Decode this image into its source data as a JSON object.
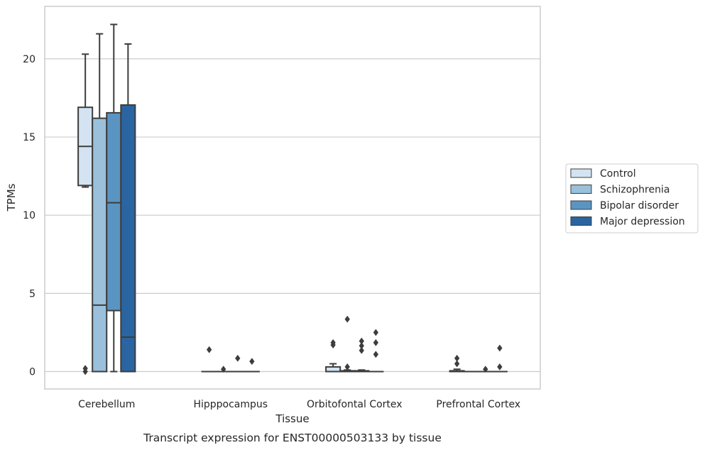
{
  "chart_data": {
    "type": "box",
    "title": "",
    "caption": "Transcript expression for ENST00000503133 by tissue",
    "xlabel": "Tissue",
    "ylabel": "TPMs",
    "ylim": [
      -1.1,
      23.4
    ],
    "yticks": [
      0,
      5,
      10,
      15,
      20
    ],
    "grid": "horizontal",
    "legend_position": "right",
    "categories": [
      "Cerebellum",
      "Hipppocampus",
      "Orbitofontal Cortex",
      "Prefrontal Cortex"
    ],
    "series": [
      {
        "name": "Control",
        "color": "#d3e3f1",
        "boxes": [
          {
            "whislo": 11.8,
            "q1": 11.9,
            "med": 14.4,
            "q3": 16.9,
            "whishi": 20.3,
            "fliers": [
              0.0,
              0.2
            ]
          },
          {
            "whislo": 0.0,
            "q1": 0.0,
            "med": 0.0,
            "q3": 0.0,
            "whishi": 0.0,
            "fliers": [
              1.4
            ]
          },
          {
            "whislo": 0.0,
            "q1": 0.0,
            "med": 0.0,
            "q3": 0.3,
            "whishi": 0.5,
            "fliers": [
              1.7,
              1.85
            ]
          },
          {
            "whislo": 0.0,
            "q1": 0.0,
            "med": 0.0,
            "q3": 0.05,
            "whishi": 0.15,
            "fliers": [
              0.5,
              0.85
            ]
          }
        ]
      },
      {
        "name": "Schizophrenia",
        "color": "#9ac0db",
        "boxes": [
          {
            "whislo": 0.0,
            "q1": 0.0,
            "med": 4.25,
            "q3": 16.2,
            "whishi": 21.6,
            "fliers": []
          },
          {
            "whislo": 0.0,
            "q1": 0.0,
            "med": 0.0,
            "q3": 0.0,
            "whishi": 0.0,
            "fliers": [
              0.15
            ]
          },
          {
            "whislo": 0.0,
            "q1": 0.0,
            "med": 0.0,
            "q3": 0.05,
            "whishi": 0.1,
            "fliers": [
              0.3,
              3.35
            ]
          },
          {
            "whislo": 0.0,
            "q1": 0.0,
            "med": 0.0,
            "q3": 0.0,
            "whishi": 0.0,
            "fliers": []
          }
        ]
      },
      {
        "name": "Bipolar disorder",
        "color": "#5a94c2",
        "boxes": [
          {
            "whislo": 0.0,
            "q1": 3.9,
            "med": 10.8,
            "q3": 16.55,
            "whishi": 22.2,
            "fliers": []
          },
          {
            "whislo": 0.0,
            "q1": 0.0,
            "med": 0.0,
            "q3": 0.0,
            "whishi": 0.0,
            "fliers": [
              0.85
            ]
          },
          {
            "whislo": 0.0,
            "q1": 0.0,
            "med": 0.0,
            "q3": 0.05,
            "whishi": 0.1,
            "fliers": [
              1.35,
              1.65,
              1.95
            ]
          },
          {
            "whislo": 0.0,
            "q1": 0.0,
            "med": 0.0,
            "q3": 0.0,
            "whishi": 0.0,
            "fliers": [
              0.15
            ]
          }
        ]
      },
      {
        "name": "Major depression",
        "color": "#2a65a2",
        "boxes": [
          {
            "whislo": 0.0,
            "q1": 0.0,
            "med": 2.2,
            "q3": 17.05,
            "whishi": 20.95,
            "fliers": []
          },
          {
            "whislo": 0.0,
            "q1": 0.0,
            "med": 0.0,
            "q3": 0.0,
            "whishi": 0.0,
            "fliers": [
              0.65
            ]
          },
          {
            "whislo": 0.0,
            "q1": 0.0,
            "med": 0.0,
            "q3": 0.0,
            "whishi": 0.0,
            "fliers": [
              1.1,
              1.85,
              2.5
            ]
          },
          {
            "whislo": 0.0,
            "q1": 0.0,
            "med": 0.0,
            "q3": 0.0,
            "whishi": 0.0,
            "fliers": [
              0.3,
              1.5
            ]
          }
        ]
      }
    ]
  },
  "colors": {
    "grid": "#cccccc",
    "frame": "#cccccc",
    "line": "#3d3d3d",
    "text": "#262626"
  }
}
